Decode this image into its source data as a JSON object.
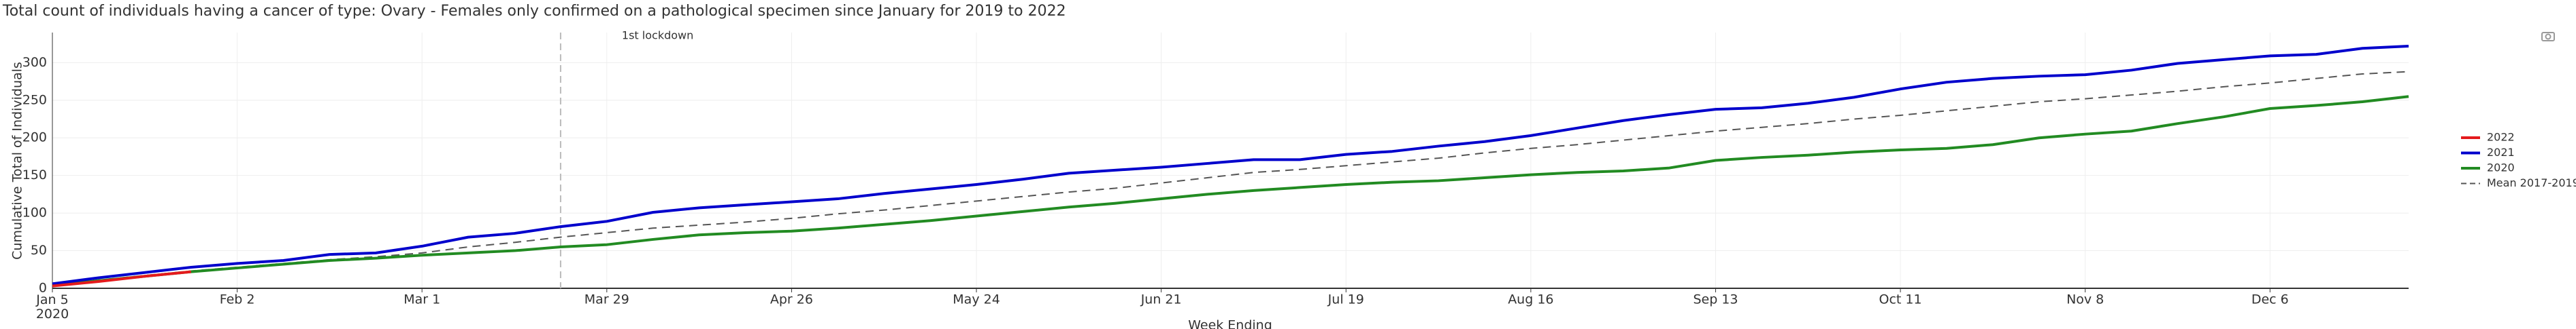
{
  "chart_data": {
    "type": "line",
    "title": "Total count of individuals having a cancer of type: Ovary - Females only confirmed on a pathological specimen since January for 2019 to 2022",
    "x_label": "Week Ending",
    "y_label": "Cumulative Total of Individuals",
    "x": [
      "2020-01-05",
      "2020-01-12",
      "2020-01-19",
      "2020-01-26",
      "2020-02-02",
      "2020-02-09",
      "2020-02-16",
      "2020-02-23",
      "2020-03-01",
      "2020-03-08",
      "2020-03-15",
      "2020-03-22",
      "2020-03-29",
      "2020-04-05",
      "2020-04-12",
      "2020-04-19",
      "2020-04-26",
      "2020-05-03",
      "2020-05-10",
      "2020-05-17",
      "2020-05-24",
      "2020-05-31",
      "2020-06-07",
      "2020-06-14",
      "2020-06-21",
      "2020-06-28",
      "2020-07-05",
      "2020-07-12",
      "2020-07-19",
      "2020-07-26",
      "2020-08-02",
      "2020-08-09",
      "2020-08-16",
      "2020-08-23",
      "2020-08-30",
      "2020-09-06",
      "2020-09-13",
      "2020-09-20",
      "2020-09-27",
      "2020-10-04",
      "2020-10-11",
      "2020-10-18",
      "2020-10-25",
      "2020-11-01",
      "2020-11-08",
      "2020-11-15",
      "2020-11-22",
      "2020-11-29",
      "2020-12-06",
      "2020-12-13",
      "2020-12-20",
      "2020-12-27"
    ],
    "series": [
      {
        "name": "2022",
        "color": "#e41a1c",
        "dash": false,
        "values": [
          3,
          9,
          16,
          22,
          null,
          null,
          null,
          null,
          null,
          null,
          null,
          null,
          null,
          null,
          null,
          null,
          null,
          null,
          null,
          null,
          null,
          null,
          null,
          null,
          null,
          null,
          null,
          null,
          null,
          null,
          null,
          null,
          null,
          null,
          null,
          null,
          null,
          null,
          null,
          null,
          null,
          null,
          null,
          null,
          null,
          null,
          null,
          null,
          null,
          null,
          null,
          null
        ]
      },
      {
        "name": "2021",
        "color": "#0000cc",
        "dash": false,
        "values": [
          6,
          14,
          21,
          28,
          33,
          37,
          45,
          47,
          56,
          68,
          73,
          82,
          89,
          101,
          107,
          111,
          115,
          119,
          126,
          132,
          138,
          145,
          153,
          157,
          161,
          166,
          171,
          171,
          178,
          182,
          189,
          195,
          203,
          213,
          223,
          231,
          238,
          240,
          246,
          254,
          265,
          274,
          279,
          282,
          284,
          290,
          299,
          304,
          309,
          311,
          319,
          322
        ]
      },
      {
        "name": "2020",
        "color": "#228b22",
        "dash": false,
        "values": [
          4,
          10,
          16,
          22,
          27,
          32,
          37,
          40,
          44,
          47,
          50,
          55,
          58,
          65,
          71,
          74,
          76,
          80,
          85,
          90,
          96,
          102,
          108,
          113,
          119,
          125,
          130,
          134,
          138,
          141,
          143,
          147,
          151,
          154,
          156,
          160,
          170,
          174,
          177,
          181,
          184,
          186,
          191,
          200,
          205,
          209,
          219,
          228,
          239,
          243,
          248,
          255
        ]
      },
      {
        "name": "Mean 2017-2019",
        "color": "#555555",
        "dash": true,
        "values": [
          5,
          11,
          17,
          23,
          28,
          33,
          38,
          42,
          47,
          55,
          61,
          68,
          74,
          80,
          84,
          88,
          93,
          99,
          104,
          110,
          116,
          122,
          128,
          133,
          140,
          147,
          154,
          158,
          163,
          168,
          173,
          180,
          186,
          191,
          197,
          203,
          209,
          214,
          219,
          225,
          230,
          236,
          242,
          248,
          252,
          257,
          262,
          268,
          273,
          279,
          285,
          288
        ]
      }
    ],
    "xlim": [
      "2020-01-05",
      "2020-12-27"
    ],
    "xticks": [
      {
        "value": "2020-01-05",
        "label": "Jan 5\n2020"
      },
      {
        "value": "2020-02-02",
        "label": "Feb 2"
      },
      {
        "value": "2020-03-01",
        "label": "Mar 1"
      },
      {
        "value": "2020-03-29",
        "label": "Mar 29"
      },
      {
        "value": "2020-04-26",
        "label": "Apr 26"
      },
      {
        "value": "2020-05-24",
        "label": "May 24"
      },
      {
        "value": "2020-06-21",
        "label": "Jun 21"
      },
      {
        "value": "2020-07-19",
        "label": "Jul 19"
      },
      {
        "value": "2020-08-16",
        "label": "Aug 16"
      },
      {
        "value": "2020-09-13",
        "label": "Sep 13"
      },
      {
        "value": "2020-10-11",
        "label": "Oct 11"
      },
      {
        "value": "2020-11-08",
        "label": "Nov 8"
      },
      {
        "value": "2020-12-06",
        "label": "Dec 6"
      }
    ],
    "ylim": [
      0,
      340
    ],
    "yticks": [
      0,
      50,
      100,
      150,
      200,
      250,
      300
    ],
    "grid": true,
    "legend": "right",
    "annotations": [
      {
        "text": "1st lockdown",
        "x": "2020-03-22"
      }
    ]
  }
}
